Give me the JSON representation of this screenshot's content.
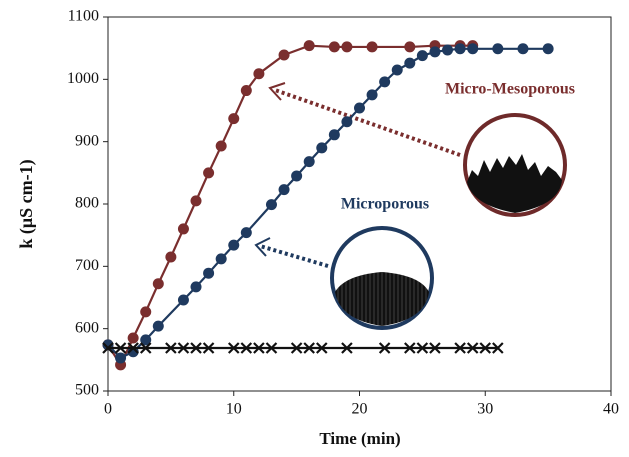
{
  "chart_data": {
    "type": "scatter",
    "xlabel": "Time (min)",
    "ylabel": "k (μS cm-1)",
    "xlim": [
      0,
      40
    ],
    "xticks": [
      0,
      10,
      20,
      30,
      40
    ],
    "ylim": [
      500,
      1100
    ],
    "yticks": [
      500,
      600,
      700,
      800,
      900,
      1000,
      1100
    ],
    "series": [
      {
        "name": "Micro-Mesoporous",
        "color": "#7a2e2e",
        "marker": "circle",
        "x": [
          0,
          1,
          2,
          3,
          4,
          5,
          6,
          7,
          8,
          9,
          10,
          11,
          12,
          14,
          16,
          18,
          19,
          21,
          24,
          26,
          28,
          29
        ],
        "values": [
          574,
          542,
          585,
          627,
          672,
          715,
          760,
          805,
          850,
          893,
          937,
          982,
          1009,
          1039,
          1054,
          1052,
          1052,
          1052,
          1052,
          1054,
          1054,
          1054
        ]
      },
      {
        "name": "Microporous",
        "color": "#1f3a5f",
        "marker": "circle",
        "x": [
          0,
          1,
          2,
          3,
          4,
          6,
          7,
          8,
          9,
          10,
          11,
          13,
          14,
          15,
          16,
          17,
          18,
          19,
          20,
          21,
          22,
          23,
          24,
          25,
          26,
          27,
          28,
          29,
          31,
          33,
          35
        ],
        "values": [
          574,
          553,
          563,
          582,
          604,
          646,
          667,
          689,
          712,
          734,
          754,
          799,
          823,
          845,
          868,
          890,
          911,
          932,
          954,
          975,
          996,
          1015,
          1026,
          1038,
          1044,
          1047,
          1049,
          1049,
          1049,
          1049,
          1049
        ]
      },
      {
        "color": "#111111",
        "marker": "x",
        "x": [
          0,
          1,
          2,
          3,
          5,
          6,
          7,
          8,
          10,
          11,
          12,
          13,
          15,
          16,
          17,
          19,
          22,
          24,
          25,
          26,
          28,
          29,
          30,
          31
        ],
        "values": [
          569,
          569,
          569,
          569,
          569,
          569,
          569,
          569,
          569,
          569,
          569,
          569,
          569,
          569,
          569,
          569,
          569,
          569,
          569,
          569,
          569,
          569,
          569,
          569
        ]
      }
    ]
  }
}
